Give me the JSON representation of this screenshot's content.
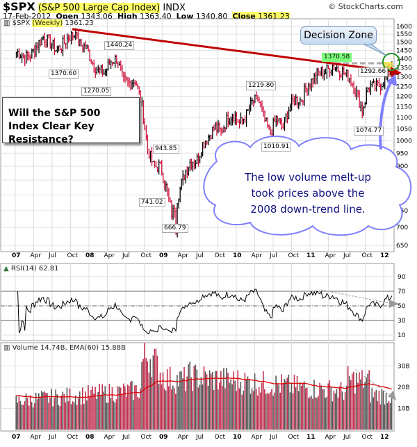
{
  "header": {
    "symbol": "$SPX",
    "name": "(S&P 500 Large Cap Index)",
    "exchange": "INDX",
    "date": "17-Feb-2012",
    "open_label": "Open",
    "open": "1343.06",
    "high_label": "High",
    "high": "1363.40",
    "low_label": "Low",
    "low": "1340.80",
    "close_label": "Close",
    "close": "1361.23",
    "copyright": "© StockCharts.com"
  },
  "chart_data": [
    {
      "type": "ohlc",
      "title": "$SPX (Weekly) 1361.23",
      "legend_symbol": "$SPX",
      "legend_period": "(Weekly)",
      "legend_value": "1361.23",
      "scale": "log",
      "ylim": [
        650,
        1600
      ],
      "yticks": [
        1600,
        1550,
        1500,
        1450,
        1400,
        1350,
        1300,
        1250,
        1200,
        1150,
        1100,
        1050,
        1000,
        950,
        900,
        850,
        800,
        750,
        700,
        650
      ],
      "xticks": [
        "07",
        "Apr",
        "Jul",
        "Oct",
        "08",
        "Apr",
        "Jul",
        "Oct",
        "09",
        "Apr",
        "Jul",
        "Oct",
        "10",
        "Apr",
        "Jul",
        "Oct",
        "11",
        "Apr",
        "Jul",
        "Oct",
        "12"
      ],
      "monthly_close_2007_to_2012": [
        1438,
        1407,
        1421,
        1482,
        1531,
        1503,
        1455,
        1474,
        1527,
        1549,
        1481,
        1468,
        1378,
        1331,
        1323,
        1386,
        1400,
        1280,
        1267,
        1283,
        1166,
        969,
        896,
        903,
        826,
        735,
        798,
        873,
        919,
        919,
        987,
        1021,
        1057,
        1036,
        1096,
        1115,
        1074,
        1104,
        1169,
        1187,
        1089,
        1031,
        1102,
        1049,
        1141,
        1183,
        1181,
        1258,
        1286,
        1327,
        1326,
        1364,
        1345,
        1321,
        1292,
        1219,
        1131,
        1253,
        1247,
        1258,
        1312,
        1361
      ],
      "annotations": [
        "1370.60",
        "1270.05",
        "1440.24",
        "943.85",
        "741.02",
        "666.79",
        "1219.80",
        "1010.91",
        "1370.58",
        "1292.66",
        "1074.77"
      ]
    },
    {
      "type": "line",
      "title": "RSI(14) 62.81",
      "legend": "RSI(14) 62.81",
      "ylim": [
        0,
        100
      ],
      "yticks": [
        90,
        70,
        50,
        30,
        10
      ],
      "levels": [
        70,
        50,
        30
      ]
    },
    {
      "type": "bar",
      "title": "Volume 14.74B, EMA(60) 15.88B",
      "legend": "Volume 14.74B, EMA(60) 15.88B",
      "unit": "B",
      "yticks": [
        "30B",
        "20B",
        "10B"
      ],
      "latest_volume": 14.74,
      "ema60": 15.88
    }
  ],
  "callouts": {
    "question": "Will the S&P 500 Index Clear Key Resistance?",
    "decision_zone": "Decision Zone",
    "cloud_lines": [
      "The low volume melt-up",
      "took prices above the",
      "2008 down-trend line."
    ]
  },
  "colors": {
    "up": "#000000",
    "down": "#d0103a",
    "trendline": "#c00000",
    "cloud": "#8080ff",
    "ema": "#e00000",
    "volume": "#666666"
  }
}
